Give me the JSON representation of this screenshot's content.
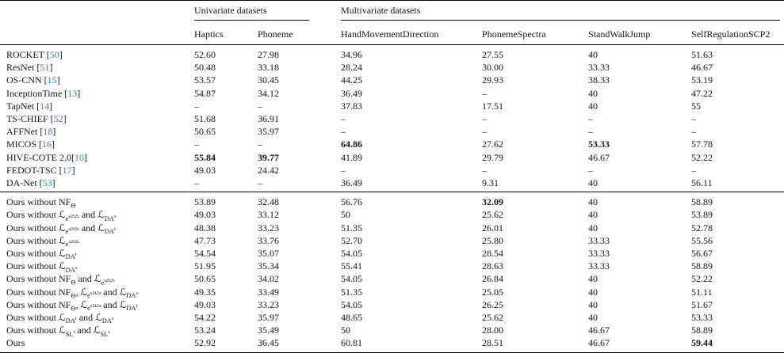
{
  "table": {
    "group_headers": [
      "Univariate datasets",
      "Multivariate datasets"
    ],
    "columns": [
      "Haptics",
      "Phoneme",
      "HandMovementDirection",
      "PhonemeSpectra",
      "StandWalkJump",
      "SelfRegulationSCP2"
    ],
    "citation_color": "#2b82c0",
    "missing_value_symbol": "–",
    "sections": [
      {
        "name": "baseline-methods",
        "rows": [
          {
            "method": "ROCKET",
            "cite": "[50]",
            "values": [
              "52.60",
              "27.98",
              "34.96",
              "27.55",
              "40",
              "51.63"
            ],
            "bold": []
          },
          {
            "method": "ResNet",
            "cite": "[51]",
            "values": [
              "50.48",
              "33.18",
              "28.24",
              "30.00",
              "33.33",
              "46.67"
            ],
            "bold": []
          },
          {
            "method": "OS-CNN",
            "cite": "[15]",
            "values": [
              "53.57",
              "30.45",
              "44.25",
              "29.93",
              "38.33",
              "53.19"
            ],
            "bold": []
          },
          {
            "method": "InceptionTime",
            "cite": "[13]",
            "values": [
              "54.87",
              "34.12",
              "36.49",
              "–",
              "40",
              "47.22"
            ],
            "bold": []
          },
          {
            "method": "TapNet",
            "cite": "[14]",
            "values": [
              "–",
              "–",
              "37.83",
              "17.51",
              "40",
              "55"
            ],
            "bold": []
          },
          {
            "method": "TS-CHIEF",
            "cite": "[52]",
            "values": [
              "51.68",
              "36.91",
              "–",
              "–",
              "–",
              "–"
            ],
            "bold": []
          },
          {
            "method": "AFFNet",
            "cite": "[18]",
            "values": [
              "50.65",
              "35.97",
              "–",
              "–",
              "–",
              "–"
            ],
            "bold": []
          },
          {
            "method": "MICOS",
            "cite": "[16]",
            "values": [
              "–",
              "–",
              "64.86",
              "27.62",
              "53.33",
              "57.78"
            ],
            "bold": [
              2,
              4
            ]
          },
          {
            "method": "HIVE-COTE 2.0",
            "cite": "[10]",
            "cite_nospace": true,
            "values": [
              "55.84",
              "39.77",
              "41.89",
              "29.79",
              "46.67",
              "52.22"
            ],
            "bold": [
              0,
              1
            ]
          },
          {
            "method": "FEDOT-TSC",
            "cite": "[17]",
            "values": [
              "49.03",
              "24.42",
              "–",
              "–",
              "–",
              "–"
            ],
            "bold": []
          },
          {
            "method": "DA-Net",
            "cite": "[53]",
            "values": [
              "–",
              "–",
              "36.49",
              "9.31",
              "40",
              "56.11"
            ],
            "bold": []
          }
        ]
      },
      {
        "name": "ablation-ours",
        "rows": [
          {
            "method": "Ours without NF_{Θ}",
            "values": [
              "53.89",
              "32.48",
              "56.76",
              "32.09",
              "40",
              "58.89"
            ],
            "bold": [
              3
            ]
          },
          {
            "method": "Ours without ℒ_{e^{s2t2s}} and ℒ_{DA^{s}}",
            "values": [
              "49.03",
              "33.12",
              "50",
              "25.62",
              "40",
              "53.89"
            ],
            "bold": []
          },
          {
            "method": "Ours without ℒ_{e^{s2t2s}} and ℒ_{DA^{t}}",
            "values": [
              "48.38",
              "33.23",
              "51.35",
              "26.01",
              "40",
              "52.78"
            ],
            "bold": []
          },
          {
            "method": "Ours without ℒ_{e^{s2t2s}}",
            "values": [
              "47.73",
              "33.76",
              "52.70",
              "25.80",
              "33.33",
              "55.56"
            ],
            "bold": []
          },
          {
            "method": "Ours without ℒ_{DA^{t}}",
            "values": [
              "54.54",
              "35.07",
              "54.05",
              "28.54",
              "33.33",
              "56.67"
            ],
            "bold": []
          },
          {
            "method": "Ours without ℒ_{DA^{s}}",
            "values": [
              "51.95",
              "35.34",
              "55.41",
              "28.63",
              "33.33",
              "58.89"
            ],
            "bold": []
          },
          {
            "method": "Ours without NF_{Θ} and ℒ_{e^{s2t2s}}",
            "values": [
              "50.65",
              "34.02",
              "54.05",
              "26.84",
              "40",
              "52.22"
            ],
            "bold": []
          },
          {
            "method": "Ours without NF_{Θ}, ℒ_{e^{s2t2s}} and ℒ_{DA^{s}}",
            "values": [
              "49.35",
              "33.49",
              "51.35",
              "25.05",
              "40",
              "51.11"
            ],
            "bold": []
          },
          {
            "method": "Ours without NF_{Θ}, ℒ_{e^{s2t2s}} and ℒ_{DA^{t}}",
            "values": [
              "49.03",
              "33.23",
              "54.05",
              "26.25",
              "40",
              "51.67"
            ],
            "bold": []
          },
          {
            "method": "Ours without ℒ_{DA^{t}} and ℒ_{DA^{s}}",
            "values": [
              "54.22",
              "35.97",
              "48.65",
              "25.62",
              "40",
              "53.33"
            ],
            "bold": []
          },
          {
            "method": "Ours without ℒ_{SL^{t}} and ℒ_{SL^{s}}",
            "values": [
              "53.24",
              "35.49",
              "50",
              "28.00",
              "46.67",
              "58.89"
            ],
            "bold": []
          },
          {
            "method": "Ours",
            "values": [
              "52.92",
              "36.45",
              "60.81",
              "28.51",
              "46.67",
              "59.44"
            ],
            "bold": [
              5
            ]
          }
        ]
      }
    ]
  }
}
